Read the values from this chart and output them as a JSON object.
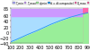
{
  "x_min": 100,
  "x_max": 900,
  "y_min": -40,
  "y_max": 85,
  "purple_color": "#cc99ff",
  "cyan_color": "#aaddff",
  "green_color": "#99ee99",
  "pink_color": "#ff66aa",
  "curve_color": "#2299ee",
  "grid_color": "#888888",
  "grid_alpha": 0.6,
  "tick_fontsize": 3.5,
  "x_ticks": [
    100,
    200,
    300,
    400,
    500,
    600,
    700,
    800,
    900
  ],
  "y_ticks": [
    -40,
    -20,
    0,
    20,
    40,
    60,
    85
  ],
  "legend_items": [
    {
      "label": "T_min",
      "color": "#aaaaff"
    },
    {
      "label": "T_max",
      "color": "#cc99ff"
    },
    {
      "label": "d_min",
      "color": "#99ee99"
    },
    {
      "label": "d = d(composite)",
      "color": "#2299ee"
    },
    {
      "label": "D_max",
      "color": "#ff66aa"
    },
    {
      "label": "p_min  p_max",
      "color": "#ff66aa"
    }
  ],
  "curve_x": [
    100,
    150,
    200,
    250,
    300,
    350,
    400,
    450,
    500,
    550,
    600,
    650,
    700,
    750,
    800,
    850,
    900
  ],
  "curve_y": [
    -35,
    -28,
    -20,
    -12,
    -5,
    2,
    10,
    18,
    26,
    33,
    40,
    46,
    52,
    57,
    62,
    66,
    70
  ],
  "pink_x_threshold": 840,
  "background": "#ffffff"
}
